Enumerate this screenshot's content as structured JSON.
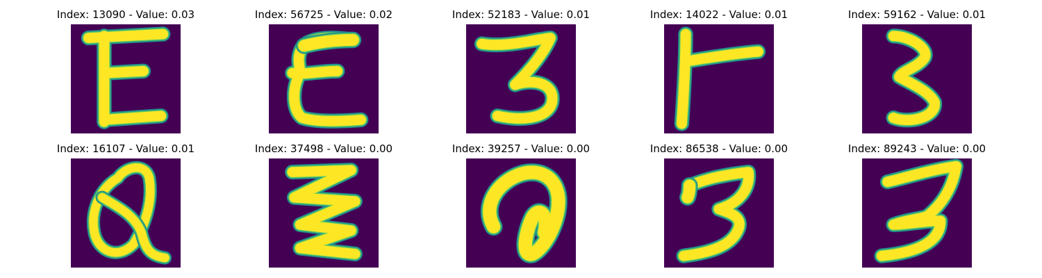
{
  "colors": {
    "background": "#440154",
    "stroke_edge": "#21918c",
    "stroke_mid": "#5ec962",
    "stroke_core": "#fde725"
  },
  "panels": [
    {
      "label": "Index: 13090 - Value: 0.03",
      "glyph": "E-block"
    },
    {
      "label": "Index: 56725 - Value: 0.02",
      "glyph": "E-curly"
    },
    {
      "label": "Index: 52183 - Value: 0.01",
      "glyph": "three-small"
    },
    {
      "label": "Index: 14022 - Value: 0.01",
      "glyph": "hook-r"
    },
    {
      "label": "Index: 59162 - Value: 0.01",
      "glyph": "three-narrow"
    },
    {
      "label": "Index: 16107 - Value: 0.01",
      "glyph": "Q-loop"
    },
    {
      "label": "Index: 37498 - Value: 0.00",
      "glyph": "zigzag"
    },
    {
      "label": "Index: 39257 - Value: 0.00",
      "glyph": "a-loop"
    },
    {
      "label": "Index: 86538 - Value: 0.00",
      "glyph": "three-flat"
    },
    {
      "label": "Index: 89243 - Value: 0.00",
      "glyph": "three-tall"
    }
  ]
}
